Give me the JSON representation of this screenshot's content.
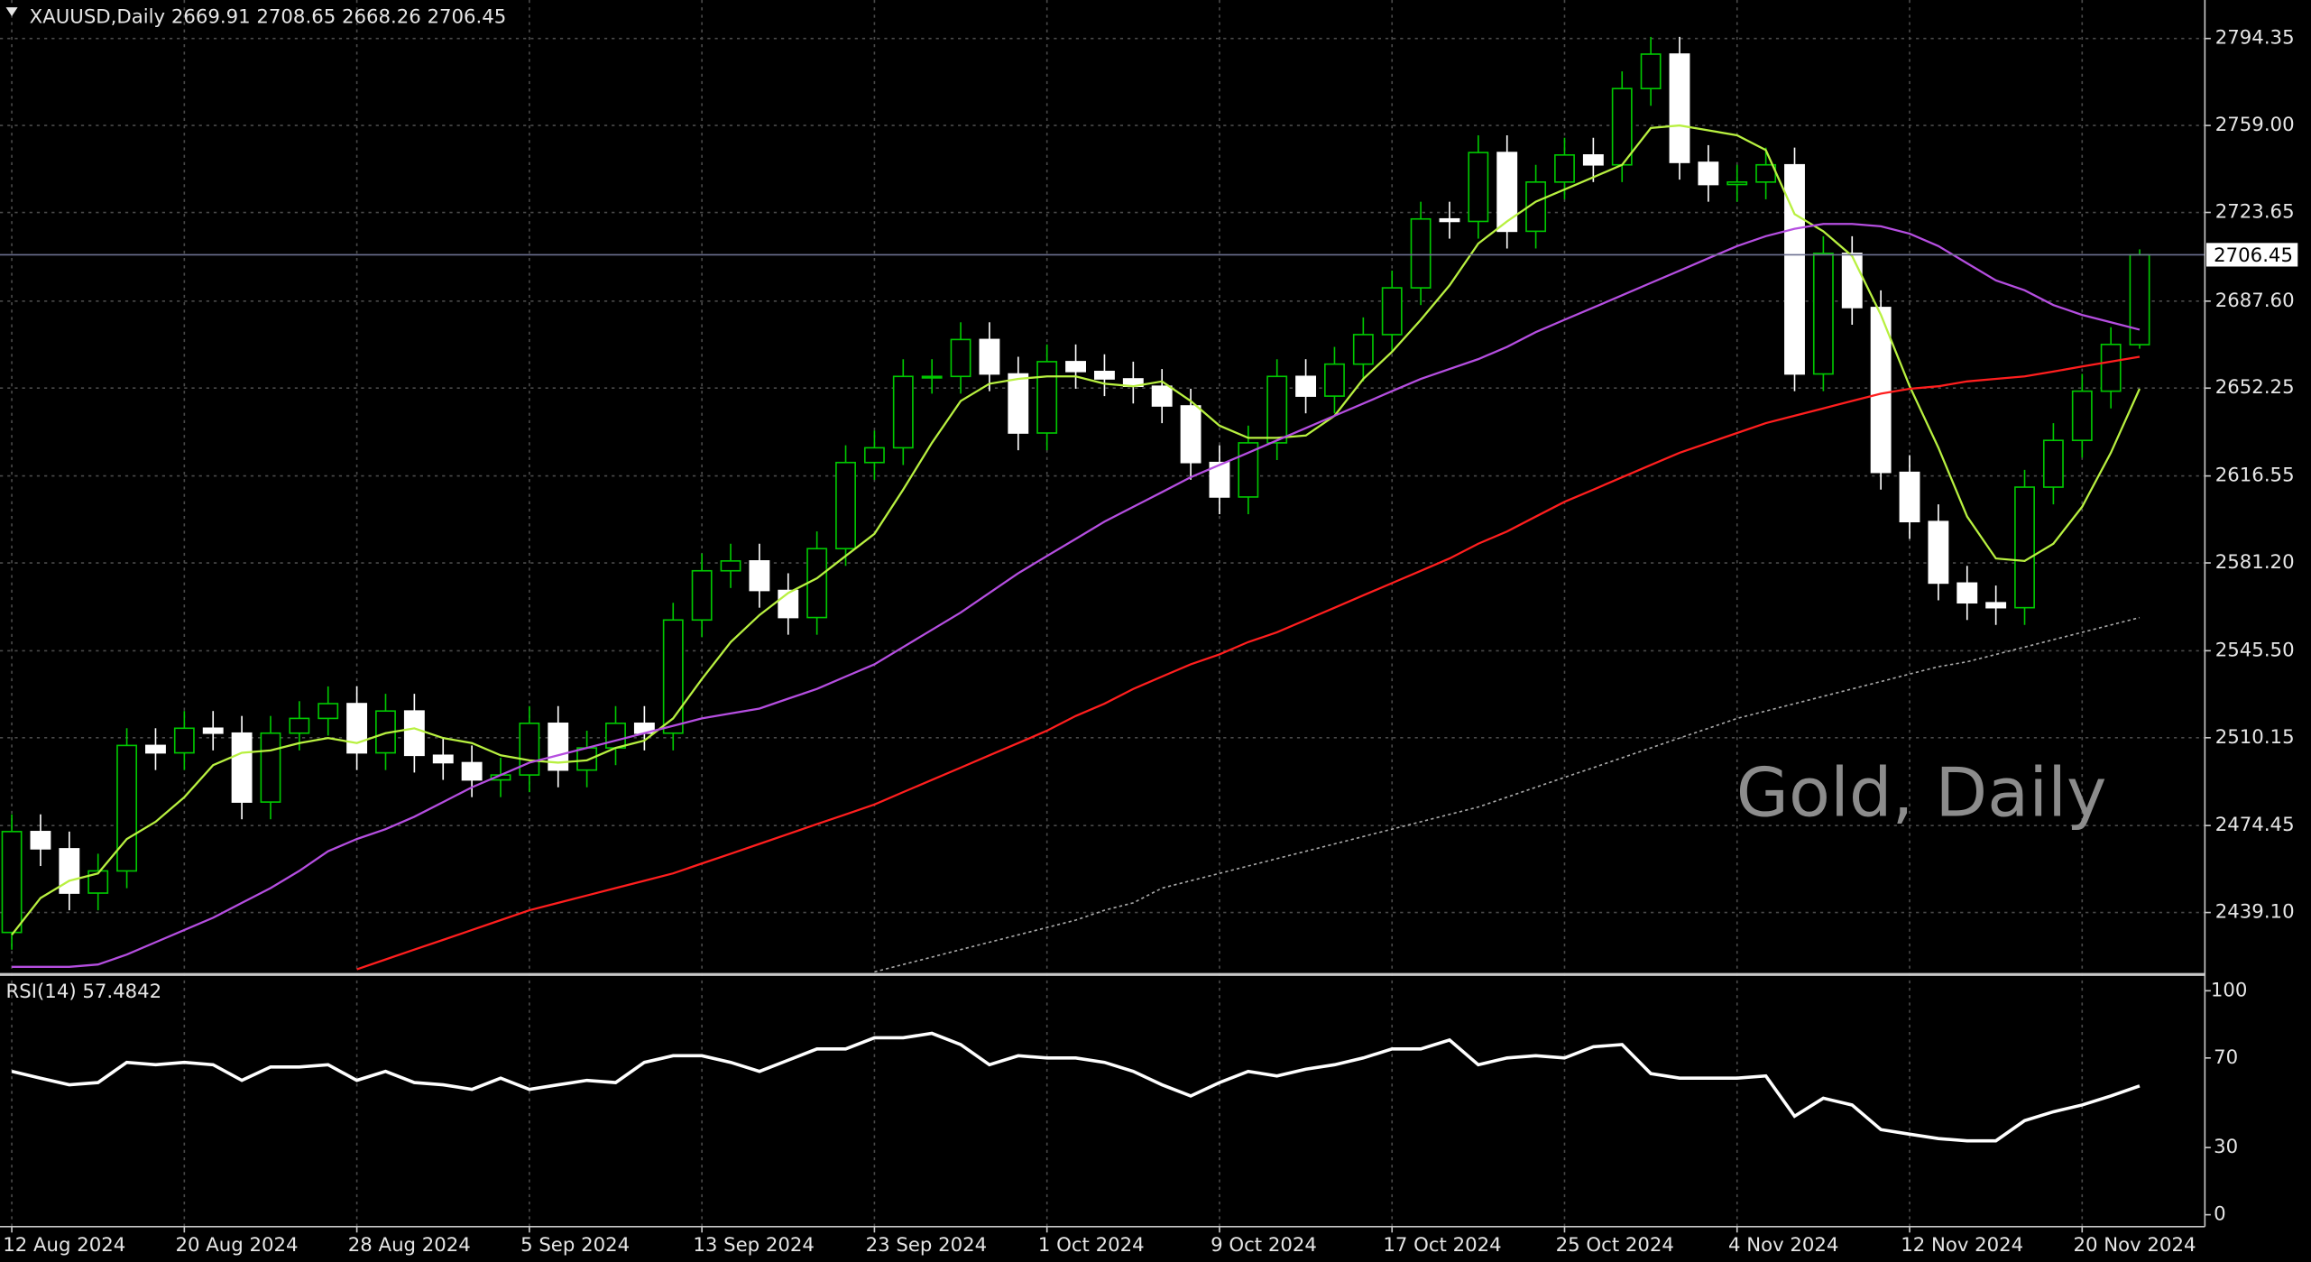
{
  "chart_data": {
    "type": "candlestick",
    "title": "XAUUSD,Daily  2669.91 2708.65 2668.26 2706.45",
    "watermark": "Gold, Daily",
    "categories": [
      "12 Aug 2024",
      null,
      null,
      null,
      null,
      null,
      "20 Aug 2024",
      null,
      null,
      null,
      null,
      null,
      "28 Aug 2024",
      null,
      null,
      null,
      null,
      null,
      "5 Sep 2024",
      null,
      null,
      null,
      null,
      null,
      "13 Sep 2024",
      null,
      null,
      null,
      null,
      null,
      "23 Sep 2024",
      null,
      null,
      null,
      null,
      null,
      "1 Oct 2024",
      null,
      null,
      null,
      null,
      null,
      "9 Oct 2024",
      null,
      null,
      null,
      null,
      null,
      "17 Oct 2024",
      null,
      null,
      null,
      null,
      null,
      "25 Oct 2024",
      null,
      null,
      null,
      null,
      null,
      "4 Nov 2024",
      null,
      null,
      null,
      null,
      null,
      "12 Nov 2024",
      null,
      null,
      null,
      null,
      null,
      "20 Nov 2024",
      null,
      null
    ],
    "open": [
      2431,
      2472,
      2465,
      2447,
      2456,
      2507,
      2504,
      2514,
      2512,
      2484,
      2512,
      2518,
      2524,
      2504,
      2521,
      2503,
      2500,
      2493,
      2495,
      2516,
      2497,
      2506,
      2516,
      2512,
      2558,
      2578,
      2582,
      2570,
      2559,
      2587,
      2622,
      2628,
      2657,
      2657,
      2672,
      2658,
      2634,
      2663,
      2659,
      2656,
      2653,
      2645,
      2622,
      2608,
      2630,
      2657,
      2649,
      2662,
      2674,
      2693,
      2721,
      2720,
      2748,
      2716,
      2736,
      2747,
      2743,
      2774,
      2788,
      2744,
      2735,
      2736,
      2743,
      2658,
      2707,
      2685,
      2618,
      2598,
      2573,
      2565,
      2563,
      2612,
      2631,
      2651,
      2669.91
    ],
    "high": [
      2479,
      2479,
      2472,
      2463,
      2514,
      2514,
      2521,
      2521,
      2519,
      2519,
      2525,
      2531,
      2531,
      2528,
      2528,
      2510,
      2507,
      2502,
      2523,
      2523,
      2513,
      2523,
      2523,
      2565,
      2585,
      2589,
      2589,
      2577,
      2594,
      2629,
      2635,
      2664,
      2664,
      2679,
      2679,
      2665,
      2670,
      2670,
      2666,
      2663,
      2660,
      2652,
      2629,
      2637,
      2664,
      2664,
      2669,
      2681,
      2700,
      2728,
      2728,
      2755,
      2755,
      2743,
      2754,
      2754,
      2781,
      2795,
      2795,
      2751,
      2743,
      2750,
      2750,
      2714,
      2714,
      2692,
      2625,
      2605,
      2580,
      2572,
      2619,
      2638,
      2658,
      2677,
      2708.65
    ],
    "low": [
      2424,
      2458,
      2440,
      2440,
      2449,
      2497,
      2497,
      2505,
      2477,
      2477,
      2505,
      2511,
      2497,
      2497,
      2496,
      2493,
      2486,
      2486,
      2488,
      2490,
      2490,
      2499,
      2505,
      2505,
      2551,
      2571,
      2563,
      2552,
      2552,
      2580,
      2615,
      2621,
      2650,
      2650,
      2651,
      2627,
      2627,
      2652,
      2649,
      2646,
      2638,
      2615,
      2601,
      2601,
      2623,
      2642,
      2642,
      2655,
      2667,
      2686,
      2713,
      2713,
      2709,
      2709,
      2729,
      2736,
      2736,
      2767,
      2737,
      2728,
      2728,
      2729,
      2651,
      2651,
      2678,
      2611,
      2591,
      2566,
      2558,
      2556,
      2556,
      2605,
      2624,
      2644,
      2668.26
    ],
    "close": [
      2472,
      2465,
      2447,
      2456,
      2507,
      2504,
      2514,
      2512,
      2484,
      2512,
      2518,
      2524,
      2504,
      2521,
      2503,
      2500,
      2493,
      2495,
      2516,
      2497,
      2506,
      2516,
      2512,
      2558,
      2578,
      2582,
      2570,
      2559,
      2587,
      2622,
      2628,
      2657,
      2657,
      2672,
      2658,
      2634,
      2663,
      2659,
      2656,
      2653,
      2645,
      2622,
      2608,
      2630,
      2657,
      2649,
      2662,
      2674,
      2693,
      2721,
      2720,
      2748,
      2716,
      2736,
      2747,
      2743,
      2774,
      2788,
      2744,
      2735,
      2736,
      2743,
      2658,
      2707,
      2685,
      2618,
      2598,
      2573,
      2565,
      2563,
      2612,
      2631,
      2651,
      2670,
      2706.45
    ],
    "up_color": "#00c800",
    "down_color": "#ffffff",
    "series": [
      {
        "color": "#b8f040",
        "dotted": false,
        "values": [
          2430,
          2445,
          2452,
          2455,
          2469,
          2476,
          2486,
          2499,
          2504,
          2505,
          2508,
          2510,
          2508,
          2512,
          2514,
          2510,
          2508,
          2503,
          2501,
          2500,
          2501,
          2506,
          2509,
          2518,
          2534,
          2549,
          2560,
          2569,
          2575,
          2584,
          2593,
          2611,
          2630,
          2647,
          2654,
          2656,
          2657,
          2657,
          2654,
          2653,
          2655,
          2647,
          2637,
          2632,
          2632,
          2633,
          2641,
          2656,
          2667,
          2680,
          2694,
          2711,
          2720,
          2728,
          2733,
          2738,
          2743,
          2758,
          2759,
          2757,
          2755,
          2749,
          2723,
          2716,
          2706,
          2682,
          2653,
          2628,
          2600,
          2583,
          2582,
          2589,
          2604,
          2626,
          2652
        ]
      },
      {
        "color": "#b54ee0",
        "dotted": false,
        "values": [
          2417,
          2417,
          2417,
          2418,
          2422,
          2427,
          2432,
          2437,
          2443,
          2449,
          2456,
          2464,
          2469,
          2473,
          2478,
          2484,
          2490,
          2495,
          2500,
          2503,
          2506,
          2509,
          2512,
          2515,
          2518,
          2520,
          2522,
          2526,
          2530,
          2535,
          2540,
          2547,
          2554,
          2561,
          2569,
          2577,
          2584,
          2591,
          2598,
          2604,
          2610,
          2616,
          2621,
          2626,
          2631,
          2636,
          2641,
          2646,
          2651,
          2656,
          2660,
          2664,
          2669,
          2675,
          2680,
          2685,
          2690,
          2695,
          2700,
          2705,
          2710,
          2714,
          2717,
          2719,
          2719,
          2718,
          2715,
          2710,
          2703,
          2696,
          2692,
          2686,
          2682,
          2679,
          2676
        ]
      },
      {
        "color": "#ff1e1e",
        "dotted": false,
        "values": [
          null,
          null,
          null,
          null,
          null,
          null,
          null,
          null,
          null,
          null,
          null,
          null,
          2416,
          2420,
          2424,
          2428,
          2432,
          2436,
          2440,
          2443,
          2446,
          2449,
          2452,
          2455,
          2459,
          2463,
          2467,
          2471,
          2475,
          2479,
          2483,
          2488,
          2493,
          2498,
          2503,
          2508,
          2513,
          2519,
          2524,
          2530,
          2535,
          2540,
          2544,
          2549,
          2553,
          2558,
          2563,
          2568,
          2573,
          2578,
          2583,
          2589,
          2594,
          2600,
          2606,
          2611,
          2616,
          2621,
          2626,
          2630,
          2634,
          2638,
          2641,
          2644,
          2647,
          2650,
          2652,
          2653,
          2655,
          2656,
          2657,
          2659,
          2661,
          2663,
          2665
        ]
      },
      {
        "color": "#a8a8a8",
        "dotted": true,
        "values": [
          null,
          null,
          null,
          null,
          null,
          null,
          null,
          null,
          null,
          null,
          null,
          null,
          null,
          null,
          null,
          null,
          null,
          null,
          null,
          null,
          null,
          null,
          null,
          null,
          null,
          null,
          null,
          null,
          null,
          null,
          2415,
          2418,
          2421,
          2424,
          2427,
          2430,
          2433,
          2436,
          2440,
          2443,
          2449,
          2452,
          2455,
          2458,
          2461,
          2464,
          2467,
          2470,
          2473,
          2476,
          2479,
          2482,
          2486,
          2490,
          2494,
          2498,
          2502,
          2506,
          2510,
          2514,
          2518,
          2521,
          2524,
          2527,
          2530,
          2533,
          2536,
          2539,
          2541,
          2544,
          2547,
          2550,
          2553,
          2556,
          2559
        ]
      }
    ],
    "ylim": [
      2414.5,
      2810
    ],
    "yticks": [
      2794.35,
      {
        "value": 2759,
        "label": "2759.00"
      },
      2723.65,
      {
        "value": 2687.6,
        "label": "2687.60"
      },
      2652.25,
      2616.55,
      {
        "value": 2581.2,
        "label": "2581.20"
      },
      {
        "value": 2545.5,
        "label": "2545.50"
      },
      2510.15,
      2474.45,
      {
        "value": 2439.1,
        "label": "2439.10"
      }
    ],
    "grid": true,
    "rsi": {
      "label": "RSI(14) 57.4842",
      "color": "#ffffff",
      "values": [
        64,
        61,
        58,
        59,
        68,
        67,
        68,
        67,
        60,
        66,
        66,
        67,
        60,
        64,
        59,
        58,
        56,
        61,
        56,
        58,
        60,
        59,
        68,
        71,
        71,
        68,
        64,
        69,
        74,
        74,
        79,
        79,
        81,
        76,
        67,
        71,
        70,
        70,
        68,
        64,
        58,
        53,
        59,
        64,
        62,
        65,
        67,
        70,
        74,
        74,
        78,
        67,
        70,
        71,
        70,
        75,
        76,
        63,
        61,
        61,
        61,
        62,
        44,
        52,
        49,
        38,
        36,
        34,
        33,
        33,
        42,
        46,
        49,
        53,
        57.4842
      ],
      "ylim": [
        -5.3,
        106.6
      ],
      "yticks": [
        100,
        70,
        30,
        0
      ]
    }
  }
}
